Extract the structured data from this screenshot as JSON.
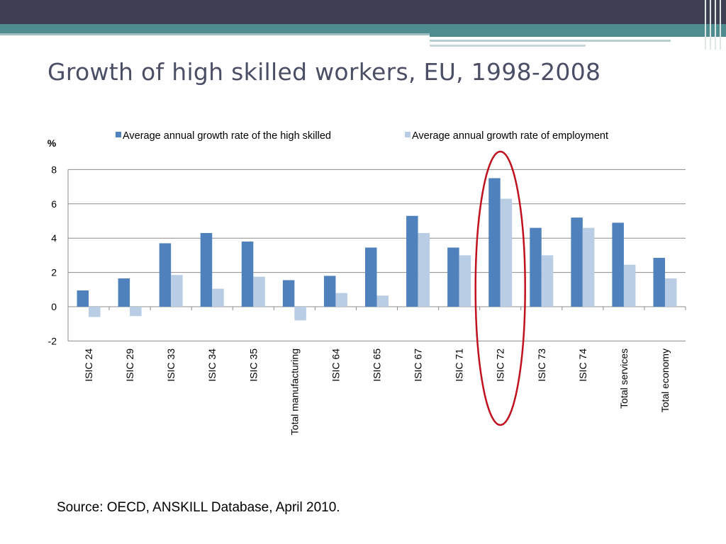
{
  "slide": {
    "title": "Growth of high skilled workers, EU, 1998-2008",
    "source": "Source: OECD, ANSKILL Database, April 2010."
  },
  "colors": {
    "high_skilled": "#4f81bd",
    "employment": "#b9cde5",
    "highlight_ellipse": "#c0111f"
  },
  "chart_data": {
    "type": "bar",
    "ylabel": "%",
    "ylim": [
      -2,
      8
    ],
    "yticks": [
      -2,
      0,
      2,
      4,
      6,
      8
    ],
    "grid": true,
    "legend_position": "top",
    "categories": [
      "ISIC 24",
      "ISIC 29",
      "ISIC 33",
      "ISIC 34",
      "ISIC 35",
      "Total manufacturing",
      "ISIC 64",
      "ISIC 65",
      "ISIC 67",
      "ISIC 71",
      "ISIC 72",
      "ISIC 73",
      "ISIC 74",
      "Total services",
      "Total economy"
    ],
    "series": [
      {
        "name": "Average annual growth rate of the high skilled",
        "values": [
          0.95,
          1.65,
          3.7,
          4.3,
          3.8,
          1.55,
          1.8,
          3.45,
          5.3,
          3.45,
          7.5,
          4.6,
          5.2,
          4.9,
          2.85
        ]
      },
      {
        "name": "Average annual growth rate of employment",
        "values": [
          -0.6,
          -0.55,
          1.85,
          1.05,
          1.75,
          -0.8,
          0.8,
          0.65,
          4.3,
          3.0,
          6.3,
          3.0,
          4.6,
          2.45,
          1.65
        ]
      }
    ],
    "highlighted_category": "ISIC 72"
  }
}
